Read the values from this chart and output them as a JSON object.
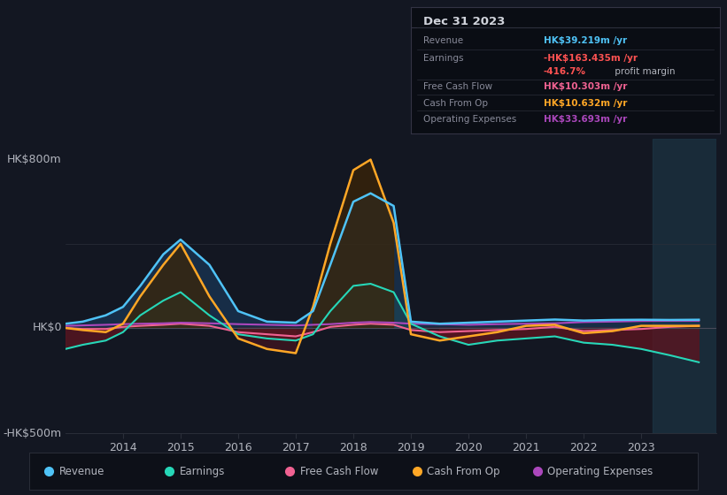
{
  "bg_color": "#131722",
  "text_color": "#b2b5be",
  "title_text_color": "#d1d4dc",
  "ylabel_800": "HK$800m",
  "ylabel_0": "HK$0",
  "ylabel_neg500": "-HK$500m",
  "years": [
    2013.0,
    2013.3,
    2013.7,
    2014.0,
    2014.3,
    2014.7,
    2015.0,
    2015.5,
    2016.0,
    2016.5,
    2017.0,
    2017.3,
    2017.6,
    2018.0,
    2018.3,
    2018.7,
    2019.0,
    2019.5,
    2020.0,
    2020.5,
    2021.0,
    2021.5,
    2022.0,
    2022.5,
    2023.0,
    2023.5,
    2024.0
  ],
  "revenue": [
    20,
    30,
    60,
    100,
    200,
    350,
    420,
    300,
    80,
    30,
    25,
    80,
    300,
    600,
    640,
    580,
    30,
    20,
    25,
    30,
    35,
    40,
    35,
    38,
    39,
    38,
    39
  ],
  "earnings": [
    -100,
    -80,
    -60,
    -20,
    60,
    130,
    170,
    60,
    -30,
    -50,
    -60,
    -30,
    80,
    200,
    210,
    170,
    20,
    -40,
    -80,
    -60,
    -50,
    -40,
    -70,
    -80,
    -100,
    -130,
    -163
  ],
  "fcf": [
    0,
    -5,
    -5,
    5,
    10,
    15,
    20,
    10,
    -20,
    -30,
    -40,
    -20,
    5,
    15,
    20,
    15,
    -10,
    -20,
    -15,
    -10,
    -5,
    5,
    -15,
    -10,
    -5,
    5,
    10
  ],
  "cashfromop": [
    0,
    -10,
    -20,
    20,
    150,
    300,
    400,
    150,
    -50,
    -100,
    -120,
    100,
    400,
    750,
    800,
    500,
    -30,
    -60,
    -40,
    -20,
    10,
    15,
    -25,
    -15,
    10,
    10,
    10
  ],
  "opex": [
    10,
    12,
    15,
    18,
    20,
    22,
    25,
    22,
    18,
    15,
    12,
    15,
    18,
    25,
    28,
    25,
    20,
    18,
    15,
    18,
    20,
    22,
    28,
    30,
    33,
    34,
    34
  ],
  "revenue_color": "#4fc3f7",
  "earnings_color": "#26d7b8",
  "fcf_color": "#f06292",
  "cashfromop_color": "#ffa726",
  "opex_color": "#ab47bc",
  "info_box_title": "Dec 31 2023",
  "info_rows": [
    {
      "label": "Revenue",
      "value": "HK$39.219m",
      "unit": " /yr",
      "value_color": "#4fc3f7"
    },
    {
      "label": "Earnings",
      "value": "-HK$163.435m",
      "unit": " /yr",
      "value_color": "#ff5252"
    },
    {
      "label": "",
      "value": "-416.7%",
      "unit": " profit margin",
      "value_color": "#ff5252",
      "unit_color": "#888899"
    },
    {
      "label": "Free Cash Flow",
      "value": "HK$10.303m",
      "unit": " /yr",
      "value_color": "#f06292"
    },
    {
      "label": "Cash From Op",
      "value": "HK$10.632m",
      "unit": " /yr",
      "value_color": "#ffa726"
    },
    {
      "label": "Operating Expenses",
      "value": "HK$33.693m",
      "unit": " /yr",
      "value_color": "#ab47bc"
    }
  ],
  "legend": [
    {
      "label": "Revenue",
      "color": "#4fc3f7"
    },
    {
      "label": "Earnings",
      "color": "#26d7b8"
    },
    {
      "label": "Free Cash Flow",
      "color": "#f06292"
    },
    {
      "label": "Cash From Op",
      "color": "#ffa726"
    },
    {
      "label": "Operating Expenses",
      "color": "#ab47bc"
    }
  ],
  "xlim": [
    2013.0,
    2024.3
  ],
  "ylim": [
    -500,
    900
  ],
  "xticks": [
    2014,
    2015,
    2016,
    2017,
    2018,
    2019,
    2020,
    2021,
    2022,
    2023
  ],
  "highlight_x_start": 2023.2,
  "highlight_x_end": 2024.3
}
